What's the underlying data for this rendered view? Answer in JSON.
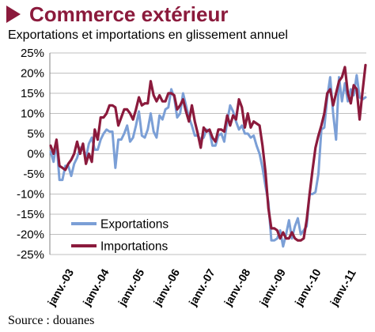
{
  "header": {
    "title": "Commerce extérieur",
    "subtitle": "Exportations et importations en glissement annuel"
  },
  "footer": {
    "source": "Source : douanes"
  },
  "colors": {
    "title": "#8b1a3c",
    "exportations": "#7b9fd6",
    "importations": "#8b1a3c",
    "gridline": "#bfbfbf"
  },
  "chart_data": {
    "type": "line",
    "title": "Exportations et importations en glissement annuel",
    "xlabel": "",
    "ylabel": "",
    "x_start": "janv.-03",
    "x_step": "mois",
    "ylim": [
      -25,
      25
    ],
    "yticks": [
      "25%",
      "20%",
      "15%",
      "10%",
      "5%",
      "0%",
      "-5%",
      "-10%",
      "-15%",
      "-20%",
      "-25%"
    ],
    "ytick_values": [
      25,
      20,
      15,
      10,
      5,
      0,
      -5,
      -10,
      -15,
      -20,
      -25
    ],
    "xticks": [
      "janv.-03",
      "janv.-04",
      "janv.-05",
      "janv.-06",
      "janv.-07",
      "janv.-08",
      "janv.-09",
      "janv.-10",
      "janv.-11"
    ],
    "grid": "horizontal",
    "legend_position": "bottom-left",
    "series": [
      {
        "name": "Exportations",
        "values": [
          0.5,
          -2,
          3,
          -6.5,
          -6.5,
          -3,
          -3,
          -5.5,
          -2.5,
          -1,
          1.5,
          1.5,
          -1,
          2.5,
          4,
          1,
          1,
          3.5,
          5,
          6,
          5.5,
          5.5,
          -3.5,
          3.5,
          3.5,
          5,
          7,
          3,
          4,
          7,
          10.5,
          4.5,
          4,
          6,
          10,
          5.5,
          4,
          9.5,
          8.5,
          11,
          11.5,
          16,
          14,
          9,
          10,
          15,
          12,
          9,
          7,
          4.5,
          4.5,
          3.5,
          4,
          6,
          5.5,
          2,
          2,
          4.5,
          5,
          3,
          8,
          12,
          10.5,
          8,
          6,
          7,
          5,
          5,
          4,
          4.5,
          2,
          0,
          -3.5,
          -8,
          -12,
          -21.5,
          -21.5,
          -21,
          -19,
          -23,
          -20,
          -16.5,
          -21,
          -18,
          -16,
          -20,
          -19,
          -18,
          -10,
          -10,
          -9.5,
          -5,
          6,
          6.5,
          14,
          19,
          10,
          3.5,
          19,
          13,
          17.5,
          13,
          16,
          14.5,
          19.5,
          14,
          13.5,
          14
        ]
      },
      {
        "name": "Importations",
        "values": [
          2,
          0,
          3.5,
          -3,
          -3.5,
          -4,
          -2.5,
          -1.5,
          0,
          3,
          0,
          2.5,
          -2.5,
          0,
          -2,
          6,
          3.5,
          9,
          9,
          10,
          12,
          12,
          11.5,
          7,
          9,
          11,
          11,
          10,
          8.5,
          11,
          14,
          12,
          12.5,
          12.5,
          18,
          14.5,
          13,
          14.5,
          13,
          13,
          15,
          15,
          14.5,
          11,
          12,
          13.5,
          10.5,
          8,
          12,
          8,
          5,
          1.5,
          6.5,
          5.5,
          6,
          4,
          3,
          6,
          6,
          5.5,
          9.5,
          7,
          9.5,
          8.5,
          13.5,
          11.5,
          6.5,
          10,
          6.5,
          8,
          7.5,
          7,
          2,
          -4.5,
          -13.5,
          -18.5,
          -18.5,
          -19,
          -21,
          -19.5,
          -21,
          -21,
          -19.5,
          -21,
          -21.5,
          -21.5,
          -21,
          -16.5,
          -10,
          -4,
          1.5,
          4.5,
          7,
          10,
          15,
          16,
          12,
          15,
          18,
          19,
          21.5,
          15,
          12.5,
          17,
          16,
          8.5,
          15.5,
          22
        ]
      }
    ]
  }
}
